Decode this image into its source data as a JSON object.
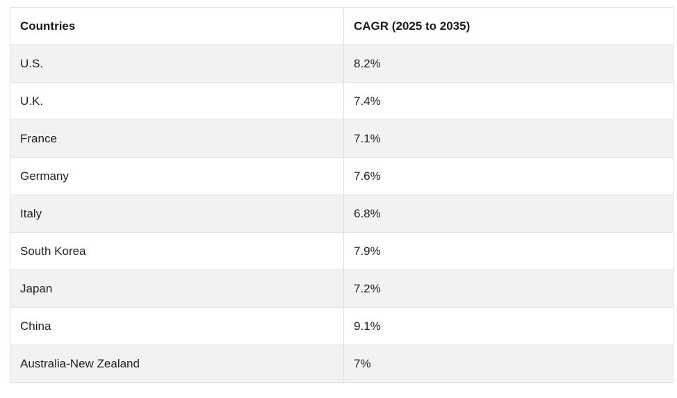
{
  "table": {
    "headers": [
      "Countries",
      "CAGR (2025 to 2035)"
    ],
    "rows": [
      [
        "U.S.",
        "8.2%"
      ],
      [
        "U.K.",
        "7.4%"
      ],
      [
        "France",
        "7.1%"
      ],
      [
        "Germany",
        "7.6%"
      ],
      [
        "Italy",
        "6.8%"
      ],
      [
        "South Korea",
        "7.9%"
      ],
      [
        "Japan",
        "7.2%"
      ],
      [
        "China",
        "9.1%"
      ],
      [
        "Australia-New Zealand",
        "7%"
      ]
    ]
  },
  "colors": {
    "stripe": "#f2f2f2",
    "border": "#e0e0e0",
    "text": "#222222"
  }
}
